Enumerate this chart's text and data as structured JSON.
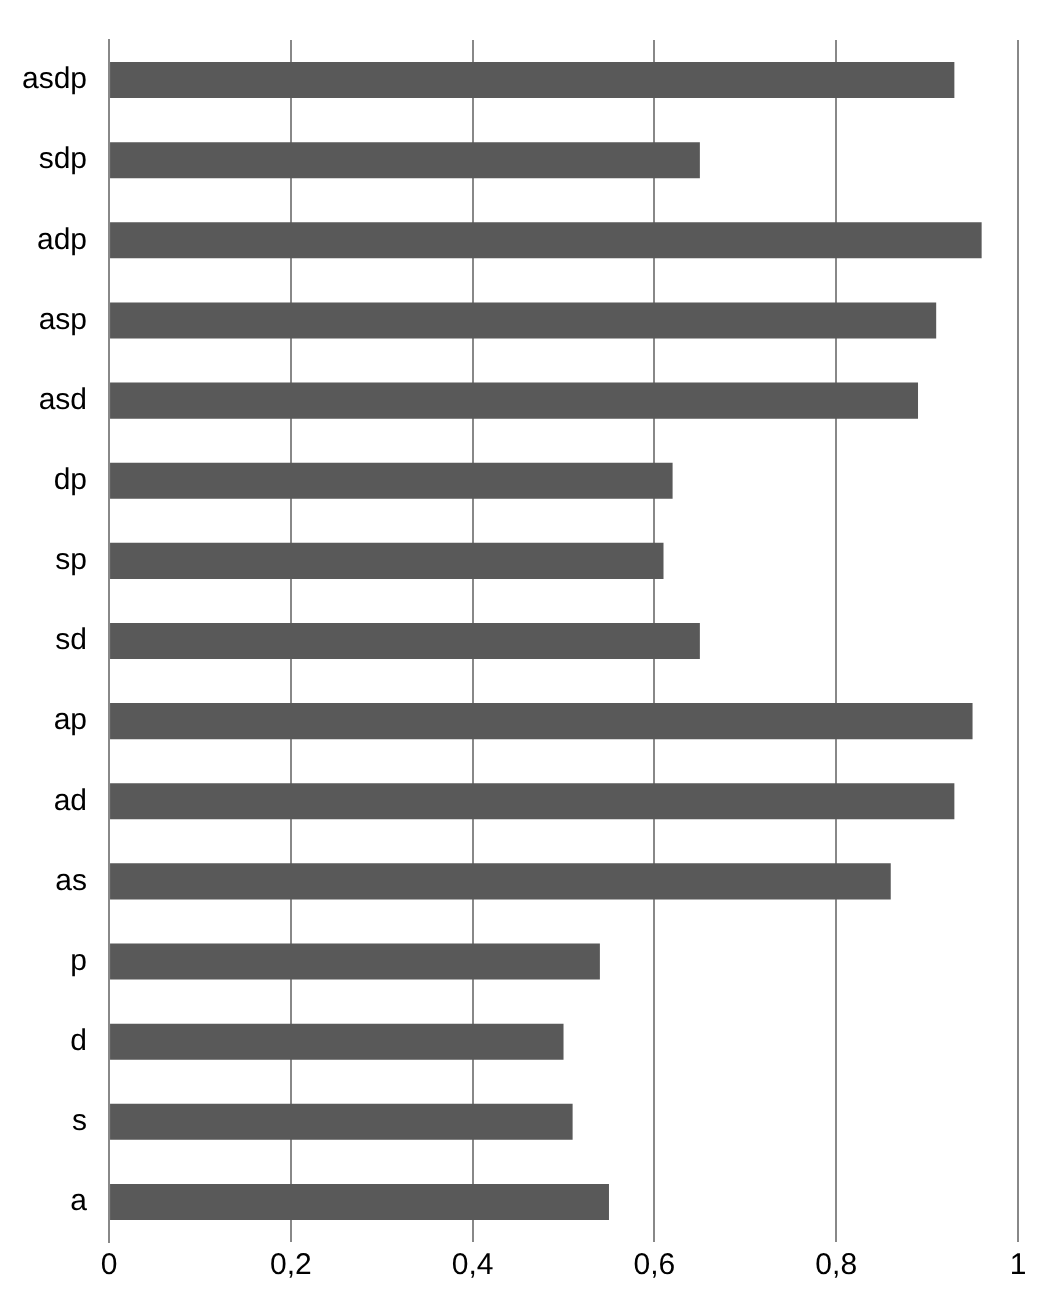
{
  "chart_data": {
    "type": "bar",
    "orientation": "horizontal",
    "categories": [
      "asdp",
      "sdp",
      "adp",
      "asp",
      "asd",
      "dp",
      "sp",
      "sd",
      "ap",
      "ad",
      "as",
      "p",
      "d",
      "s",
      "a"
    ],
    "values": [
      0.93,
      0.65,
      0.96,
      0.91,
      0.89,
      0.62,
      0.61,
      0.65,
      0.95,
      0.93,
      0.86,
      0.54,
      0.5,
      0.51,
      0.55
    ],
    "color": "#595959",
    "xlim": [
      0,
      1
    ],
    "xticks": [
      0,
      {
        "value": 0.2,
        "label": "0,2"
      },
      {
        "value": 0.4,
        "label": "0,4"
      },
      {
        "value": 0.6,
        "label": "0,6"
      },
      {
        "value": 0.8,
        "label": "0,8"
      },
      1
    ],
    "grid": "x",
    "legend": false
  }
}
